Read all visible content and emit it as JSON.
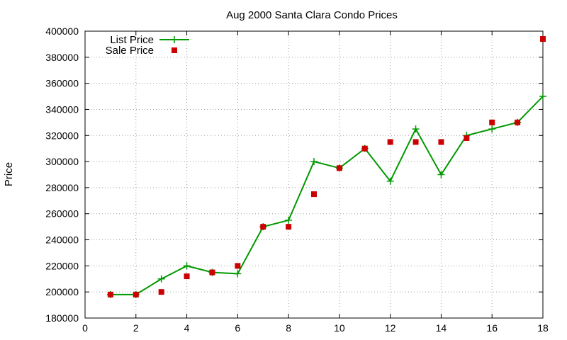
{
  "chart_data": {
    "type": "line",
    "title": "Aug 2000 Santa Clara Condo Prices",
    "xlabel": "",
    "ylabel": "Price",
    "xlim": [
      0,
      18
    ],
    "ylim": [
      180000,
      400000
    ],
    "x_ticks": [
      "0",
      "2",
      "4",
      "6",
      "8",
      "10",
      "12",
      "14",
      "16",
      "18"
    ],
    "y_ticks": [
      "180000",
      "200000",
      "220000",
      "240000",
      "260000",
      "280000",
      "300000",
      "320000",
      "340000",
      "360000",
      "380000",
      "400000"
    ],
    "grid": true,
    "legend_position": "top-left",
    "series": [
      {
        "name": "List Price",
        "style": "linespoints",
        "marker": "plus",
        "color": "#009900",
        "x": [
          1,
          2,
          3,
          4,
          5,
          6,
          7,
          8,
          9,
          10,
          11,
          12,
          13,
          14,
          15,
          16,
          17,
          18
        ],
        "y": [
          198000,
          198000,
          210000,
          220000,
          215000,
          214000,
          250000,
          255000,
          300000,
          295000,
          310000,
          285000,
          325000,
          290000,
          320000,
          325000,
          330000,
          350000
        ]
      },
      {
        "name": "Sale Price",
        "style": "points",
        "marker": "square",
        "color": "#cc0000",
        "x": [
          1,
          2,
          3,
          4,
          5,
          6,
          7,
          8,
          9,
          10,
          11,
          12,
          13,
          14,
          15,
          16,
          17,
          18
        ],
        "y": [
          198000,
          198000,
          200000,
          212000,
          215000,
          220000,
          250000,
          250000,
          275000,
          295000,
          310000,
          315000,
          315000,
          315000,
          318000,
          330000,
          330000,
          394000
        ]
      }
    ]
  }
}
